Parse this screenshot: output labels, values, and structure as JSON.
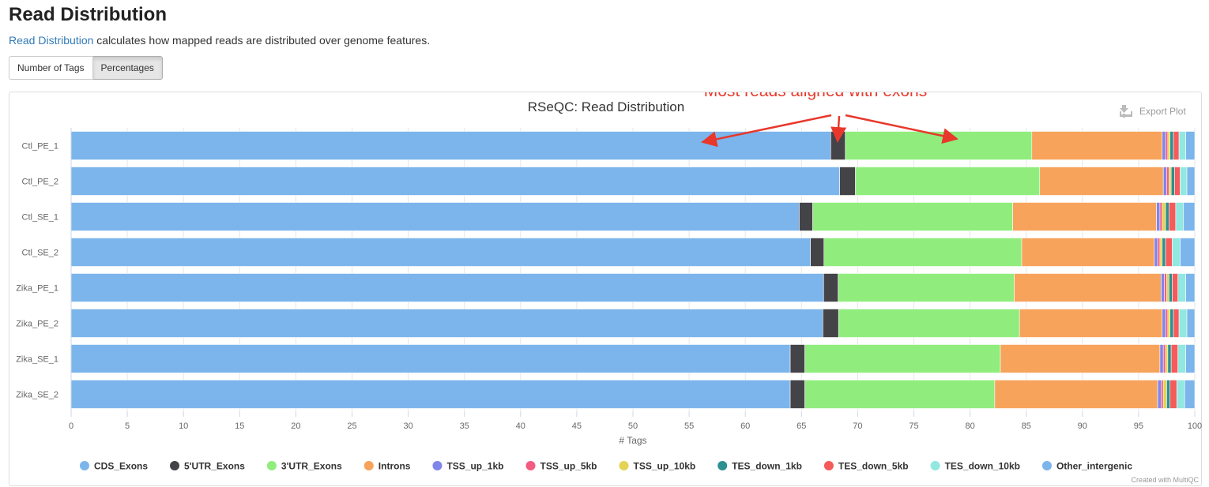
{
  "page": {
    "title": "Read Distribution",
    "intro_link": "Read Distribution",
    "intro_text": " calculates how mapped reads are distributed over genome features."
  },
  "toggle": {
    "number_label": "Number of Tags",
    "percent_label": "Percentages"
  },
  "export_label": "Export Plot",
  "annotation_text": "Most reads aligned with exons",
  "credit_text": "Created with MultiQC",
  "colors": {
    "CDS_Exons": "#7cb5ec",
    "5'UTR_Exons": "#434348",
    "3'UTR_Exons": "#90ed7d",
    "Introns": "#f7a35c",
    "TSS_up_1kb": "#8085e9",
    "TSS_up_5kb": "#f15c80",
    "TSS_up_10kb": "#e4d354",
    "TES_down_1kb": "#2b908f",
    "TES_down_5kb": "#f45b5b",
    "TES_down_10kb": "#91e8e1",
    "Other_intergenic": "#7cb5ec",
    "annotation": "#e8382b"
  },
  "chart_data": {
    "type": "bar",
    "orientation": "horizontal",
    "stacked": true,
    "title": "RSeQC: Read Distribution",
    "xlabel": "# Tags",
    "ylabel": "",
    "xlim": [
      0,
      100
    ],
    "xticks": [
      0,
      5,
      10,
      15,
      20,
      25,
      30,
      35,
      40,
      45,
      50,
      55,
      60,
      65,
      70,
      75,
      80,
      85,
      90,
      95,
      100
    ],
    "legend_position": "bottom",
    "grid": true,
    "categories": [
      "Ctl_PE_1",
      "Ctl_PE_2",
      "Ctl_SE_1",
      "Ctl_SE_2",
      "Zika_PE_1",
      "Zika_PE_2",
      "Zika_SE_1",
      "Zika_SE_2"
    ],
    "series": [
      {
        "name": "CDS_Exons",
        "values": [
          67.6,
          68.4,
          64.8,
          65.8,
          67.1,
          66.9,
          64.0,
          64.0
        ]
      },
      {
        "name": "5'UTR_Exons",
        "values": [
          1.3,
          1.4,
          1.2,
          1.2,
          1.3,
          1.4,
          1.3,
          1.3
        ]
      },
      {
        "name": "3'UTR_Exons",
        "values": [
          16.6,
          16.4,
          17.8,
          17.6,
          15.7,
          16.1,
          17.4,
          16.9
        ]
      },
      {
        "name": "Introns",
        "values": [
          11.6,
          11.0,
          12.8,
          11.8,
          13.1,
          12.7,
          14.2,
          14.5
        ]
      },
      {
        "name": "TSS_up_1kb",
        "values": [
          0.3,
          0.3,
          0.3,
          0.3,
          0.3,
          0.3,
          0.3,
          0.3
        ]
      },
      {
        "name": "TSS_up_5kb",
        "values": [
          0.2,
          0.2,
          0.2,
          0.2,
          0.2,
          0.2,
          0.2,
          0.2
        ]
      },
      {
        "name": "TSS_up_10kb",
        "values": [
          0.2,
          0.2,
          0.3,
          0.2,
          0.2,
          0.2,
          0.2,
          0.3
        ]
      },
      {
        "name": "TES_down_1kb",
        "values": [
          0.3,
          0.3,
          0.3,
          0.3,
          0.3,
          0.3,
          0.3,
          0.3
        ]
      },
      {
        "name": "TES_down_5kb",
        "values": [
          0.5,
          0.5,
          0.6,
          0.6,
          0.5,
          0.5,
          0.6,
          0.6
        ]
      },
      {
        "name": "TES_down_10kb",
        "values": [
          0.6,
          0.6,
          0.7,
          0.7,
          0.7,
          0.7,
          0.7,
          0.7
        ]
      },
      {
        "name": "Other_intergenic",
        "values": [
          0.8,
          0.7,
          1.0,
          1.3,
          0.8,
          0.7,
          0.8,
          0.9
        ]
      }
    ]
  }
}
